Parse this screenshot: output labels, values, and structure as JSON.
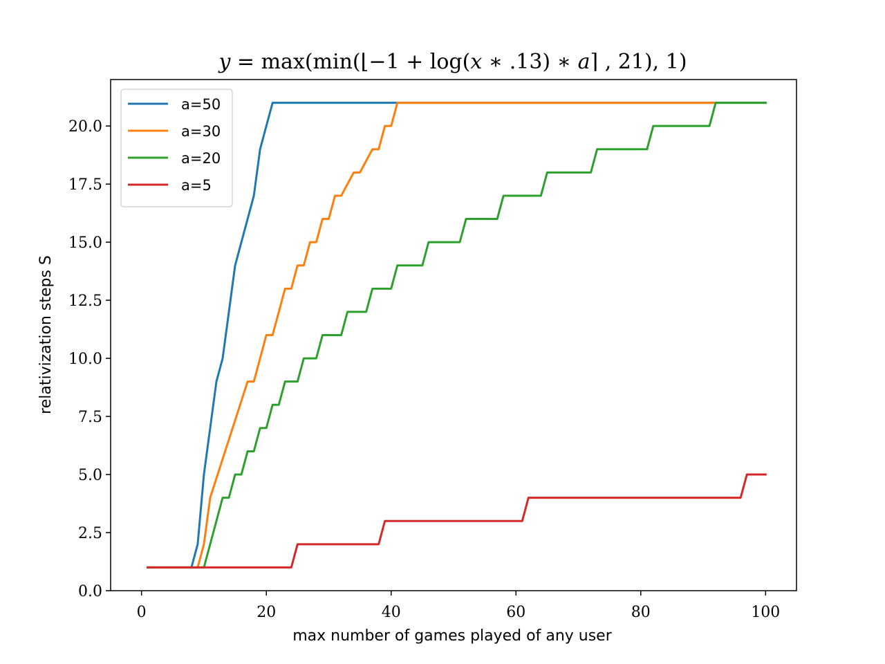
{
  "chart_data": {
    "type": "line",
    "title": {
      "p1": "y",
      "p2": " = max(min(⌊−1 + log(",
      "p3": "x",
      "p4": " ∗ .13) ∗ ",
      "p5": "a",
      "p6": "⌉ , 21), 1)"
    },
    "xlabel": "max number of games played of any user",
    "ylabel": "relativization steps S",
    "xlim": [
      -4.95,
      104.95
    ],
    "ylim": [
      0,
      22
    ],
    "xticks": [
      0,
      20,
      40,
      60,
      80,
      100
    ],
    "xtick_labels": [
      "0",
      "20",
      "40",
      "60",
      "80",
      "100"
    ],
    "yticks": [
      0,
      2.5,
      5,
      7.5,
      10,
      12.5,
      15,
      17.5,
      20
    ],
    "ytick_labels": [
      "0.0",
      "2.5",
      "5.0",
      "7.5",
      "10.0",
      "12.5",
      "15.0",
      "17.5",
      "20.0"
    ],
    "grid": false,
    "legend_position": "top-left",
    "series": [
      {
        "name": "a=50",
        "color": "#1f77b4",
        "x": [
          1,
          8,
          9,
          10,
          12,
          13,
          15,
          18,
          19,
          21,
          100
        ],
        "y": [
          1,
          1,
          2,
          5,
          9,
          10,
          14,
          17,
          19,
          21,
          21
        ]
      },
      {
        "name": "a=30",
        "color": "#ff7f0e",
        "x": [
          1,
          9,
          10,
          11,
          17,
          18,
          20,
          21,
          23,
          24,
          25,
          26,
          27,
          28,
          29,
          30,
          31,
          32,
          34,
          35,
          37,
          38,
          39,
          40,
          41,
          92
        ],
        "y": [
          1,
          1,
          2,
          4,
          9,
          9,
          11,
          11,
          13,
          13,
          14,
          14,
          15,
          15,
          16,
          16,
          17,
          17,
          18,
          18,
          19,
          19,
          20,
          20,
          21,
          21
        ]
      },
      {
        "name": "a=20",
        "color": "#2ca02c",
        "x": [
          1,
          10,
          13,
          14,
          15,
          16,
          17,
          18,
          19,
          20,
          21,
          22,
          23,
          25,
          26,
          28,
          29,
          32,
          33,
          36,
          37,
          40,
          41,
          45,
          46,
          51,
          52,
          57,
          58,
          64,
          65,
          72,
          73,
          81,
          82,
          91,
          92,
          100
        ],
        "y": [
          1,
          1,
          4,
          4,
          5,
          5,
          6,
          6,
          7,
          7,
          8,
          8,
          9,
          9,
          10,
          10,
          11,
          11,
          12,
          12,
          13,
          13,
          14,
          14,
          15,
          15,
          16,
          16,
          17,
          17,
          18,
          18,
          19,
          19,
          20,
          20,
          21,
          21
        ]
      },
      {
        "name": "a=5",
        "color": "#d62728",
        "x": [
          1,
          24,
          25,
          38,
          39,
          61,
          62,
          96,
          97,
          100
        ],
        "y": [
          1,
          1,
          2,
          2,
          3,
          3,
          4,
          4,
          5,
          5
        ]
      }
    ]
  }
}
